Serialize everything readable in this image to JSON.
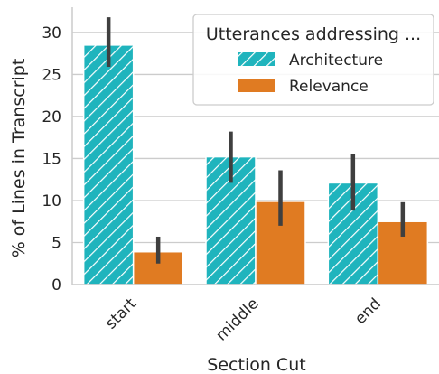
{
  "chart_data": {
    "type": "bar",
    "xlabel": "Section Cut",
    "ylabel": "% of Lines in Transcript",
    "categories": [
      "start",
      "middle",
      "end"
    ],
    "ylim": [
      0,
      33
    ],
    "yticks": [
      0,
      5,
      10,
      15,
      20,
      25,
      30
    ],
    "grid": "horizontal",
    "legend": {
      "title": "Utterances addressing ...",
      "placement": "top-right"
    },
    "series": [
      {
        "name": "Architecture",
        "color": "#1fb4bd",
        "hatch": "diagonal",
        "values": [
          28.5,
          15.2,
          12.1
        ],
        "ci_low": [
          25.9,
          12.1,
          8.8
        ],
        "ci_high": [
          31.8,
          18.2,
          15.5
        ]
      },
      {
        "name": "Relevance",
        "color": "#e07b22",
        "hatch": "none",
        "values": [
          3.9,
          9.9,
          7.5
        ],
        "ci_low": [
          2.5,
          7.0,
          5.7
        ],
        "ci_high": [
          5.7,
          13.6,
          9.8
        ]
      }
    ]
  }
}
